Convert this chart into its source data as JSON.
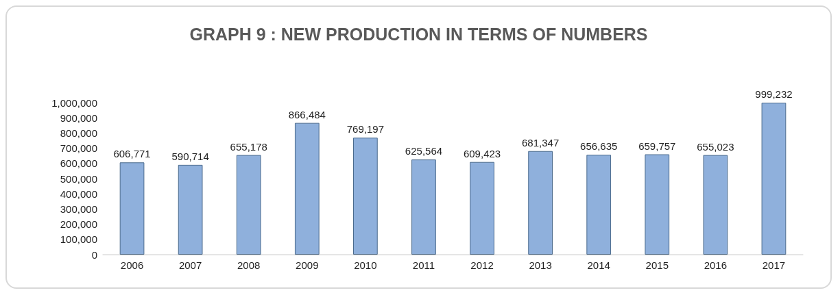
{
  "chart_data": {
    "type": "bar",
    "title": "GRAPH 9 : NEW PRODUCTION IN TERMS OF NUMBERS",
    "categories": [
      "2006",
      "2007",
      "2008",
      "2009",
      "2010",
      "2011",
      "2012",
      "2013",
      "2014",
      "2015",
      "2016",
      "2017"
    ],
    "values": [
      606771,
      590714,
      655178,
      866484,
      769197,
      625564,
      609423,
      681347,
      656635,
      659757,
      655023,
      999232
    ],
    "value_labels": [
      "606,771",
      "590,714",
      "655,178",
      "866,484",
      "769,197",
      "625,564",
      "609,423",
      "681,347",
      "656,635",
      "659,757",
      "655,023",
      "999,232"
    ],
    "color": "#8fb0dc",
    "ylim": [
      0,
      1000000
    ],
    "yticks": [
      0,
      {
        "value": 100000,
        "label": "100,000"
      },
      {
        "value": 200000,
        "label": "200,000"
      },
      {
        "value": 300000,
        "label": "300,000"
      },
      {
        "value": 400000,
        "label": "400,000"
      },
      {
        "value": 500000,
        "label": "500,000"
      },
      {
        "value": 600000,
        "label": "600,000"
      },
      {
        "value": 700000,
        "label": "700,000"
      },
      {
        "value": 800000,
        "label": "800,000"
      },
      {
        "value": 900000,
        "label": "900,000"
      },
      {
        "value": 1000000,
        "label": "1,000,000"
      }
    ],
    "grid": false
  }
}
